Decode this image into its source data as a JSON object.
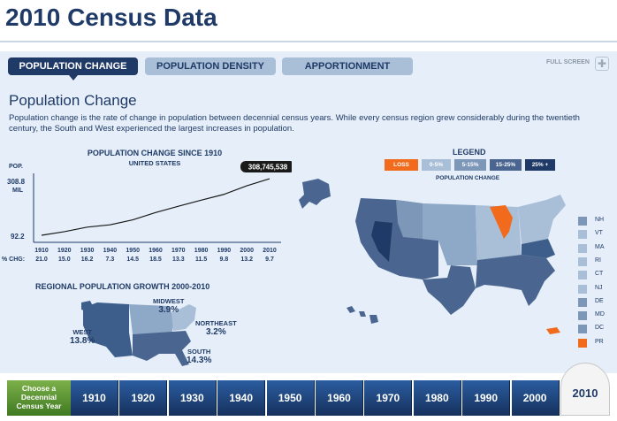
{
  "page_title": "2010 Census Data",
  "tabs": [
    {
      "label": "POPULATION CHANGE",
      "active": true
    },
    {
      "label": "POPULATION DENSITY",
      "active": false
    },
    {
      "label": "APPORTIONMENT",
      "active": false
    }
  ],
  "full_screen_label": "FULL SCREEN",
  "section": {
    "title": "Population Change",
    "description": "Population change is the rate of change in population between decennial census years. While every census region grew considerably during the twentieth century, the South and West experienced the largest increases in population."
  },
  "chart_data": {
    "type": "line",
    "title": "POPULATION CHANGE SINCE 1910",
    "subtitle": "UNITED STATES",
    "ylabel": "POP.",
    "y_top_label": "308.8",
    "y_top_unit": "MIL",
    "y_bottom_label": "92.2",
    "ylim": [
      92.2,
      308.8
    ],
    "x": [
      "1910",
      "1920",
      "1930",
      "1940",
      "1950",
      "1960",
      "1970",
      "1980",
      "1990",
      "2000",
      "2010"
    ],
    "values": [
      92.2,
      106.0,
      123.2,
      132.2,
      151.3,
      179.3,
      203.3,
      226.5,
      248.7,
      281.4,
      308.7
    ],
    "callout": "308,745,538",
    "pct_label": "% CHG:",
    "pct_changes": [
      "21.0",
      "15.0",
      "16.2",
      "7.3",
      "14.5",
      "18.5",
      "13.3",
      "11.5",
      "9.8",
      "13.2",
      "9.7"
    ]
  },
  "regional": {
    "title": "REGIONAL POPULATION GROWTH 2000-2010",
    "midwest": {
      "name": "MIDWEST",
      "value": "3.9%"
    },
    "northeast": {
      "name": "NORTHEAST",
      "value": "3.2%"
    },
    "west": {
      "name": "WEST",
      "value": "13.8%"
    },
    "south": {
      "name": "SOUTH",
      "value": "14.3%"
    }
  },
  "legend": {
    "title": "LEGEND",
    "subtitle": "POPULATION CHANGE",
    "items": [
      {
        "label": "LOSS",
        "color": "#f26b1d"
      },
      {
        "label": "0-5%",
        "color": "#a9bfd8"
      },
      {
        "label": "5-15%",
        "color": "#7d97b8"
      },
      {
        "label": "15-25%",
        "color": "#4a6690"
      },
      {
        "label": "25% +",
        "color": "#1f3a66"
      }
    ]
  },
  "northeast_states": [
    {
      "label": "NH",
      "color": "#7d97b8"
    },
    {
      "label": "VT",
      "color": "#a9bfd8"
    },
    {
      "label": "MA",
      "color": "#a9bfd8"
    },
    {
      "label": "RI",
      "color": "#a9bfd8"
    },
    {
      "label": "CT",
      "color": "#a9bfd8"
    },
    {
      "label": "NJ",
      "color": "#a9bfd8"
    },
    {
      "label": "DE",
      "color": "#7d97b8"
    },
    {
      "label": "MD",
      "color": "#7d97b8"
    },
    {
      "label": "DC",
      "color": "#7d97b8"
    },
    {
      "label": "PR",
      "color": "#f26b1d"
    }
  ],
  "timeline": {
    "choose_label": "Choose a Decennial Census Year",
    "years": [
      "1910",
      "1920",
      "1930",
      "1940",
      "1950",
      "1960",
      "1970",
      "1980",
      "1990",
      "2000"
    ],
    "selected_year": "2010"
  }
}
